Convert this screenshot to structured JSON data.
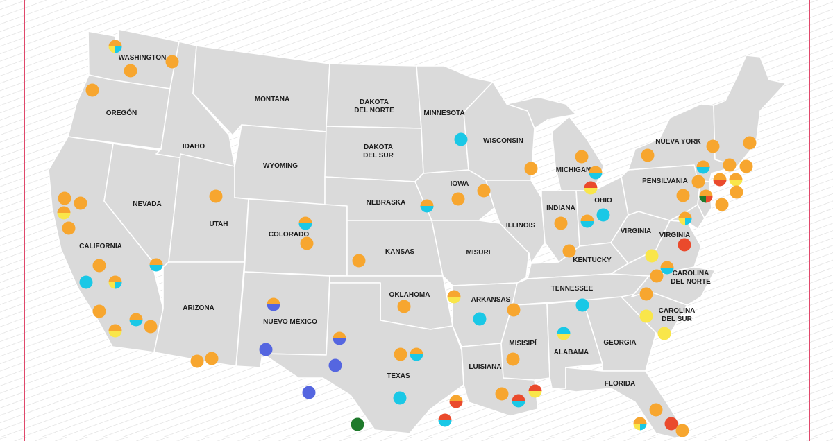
{
  "colors": {
    "orange": "#f7a62f",
    "cyan": "#1ac8e6",
    "yellow": "#f9e64a",
    "red": "#ea4a2c",
    "blue": "#5566e0",
    "green": "#1f7a2c",
    "frame": "#e0486b",
    "land": "#dadada"
  },
  "labels": {
    "washington": "WASHINGTON",
    "oregon": "OREGÓN",
    "california": "CALIFORNIA",
    "nevada": "NEVADA",
    "idaho": "IDAHO",
    "montana": "MONTANA",
    "wyoming": "WYOMING",
    "utah": "UTAH",
    "arizona": "ARIZONA",
    "colorado": "COLORADO",
    "nuevo_mexico": "NUEVO MÉXICO",
    "dakota_del_norte_1": "DAKOTA",
    "dakota_del_norte_2": "DEL NORTE",
    "dakota_del_sur_1": "DAKOTA",
    "dakota_del_sur_2": "DEL SUR",
    "nebraska": "NEBRASKA",
    "kansas": "KANSAS",
    "oklahoma": "OKLAHOMA",
    "texas": "TEXAS",
    "minnesota": "MINNESOTA",
    "iowa": "IOWA",
    "misuri": "MISURI",
    "arkansas": "ARKANSAS",
    "luisiana": "LUISIANA",
    "wisconsin": "WISCONSIN",
    "illinois": "ILLINOIS",
    "michigan": "MICHIGAN",
    "indiana": "INDIANA",
    "ohio": "OHIO",
    "kentucky": "KENTUCKY",
    "tennessee": "TENNESSEE",
    "misisipi": "MISISIPÍ",
    "alabama": "ALABAMA",
    "georgia": "GEORGIA",
    "florida": "FLORIDA",
    "carolina_del_sur_1": "CAROLINA",
    "carolina_del_sur_2": "DEL SUR",
    "carolina_del_norte_1": "CAROLINA",
    "carolina_del_norte_2": "DEL NORTE",
    "virginia": "VIRGINIA",
    "virginia_occidental": "VIRGINIA",
    "pensilvania": "PENSILVANIA",
    "nueva_york": "NUEVA YORK"
  },
  "markers": [
    {
      "id": "wa-1",
      "colors": [
        "orange",
        "cyan",
        "yellow"
      ]
    },
    {
      "id": "wa-2",
      "colors": [
        "orange"
      ]
    },
    {
      "id": "wa-3",
      "colors": [
        "orange"
      ]
    },
    {
      "id": "or-1",
      "colors": [
        "orange"
      ]
    },
    {
      "id": "ca-1",
      "colors": [
        "orange"
      ]
    },
    {
      "id": "ca-2",
      "colors": [
        "orange",
        "yellow"
      ]
    },
    {
      "id": "ca-3",
      "colors": [
        "orange"
      ]
    },
    {
      "id": "ca-4",
      "colors": [
        "orange"
      ]
    },
    {
      "id": "ca-5",
      "colors": [
        "orange"
      ]
    },
    {
      "id": "ca-6",
      "colors": [
        "cyan"
      ]
    },
    {
      "id": "ca-7",
      "colors": [
        "orange",
        "cyan",
        "yellow"
      ]
    },
    {
      "id": "ca-8",
      "colors": [
        "orange"
      ]
    },
    {
      "id": "ca-9",
      "colors": [
        "orange",
        "cyan"
      ]
    },
    {
      "id": "ca-10",
      "colors": [
        "orange"
      ]
    },
    {
      "id": "ca-11",
      "colors": [
        "orange",
        "yellow"
      ]
    },
    {
      "id": "ca-12",
      "colors": [
        "orange"
      ]
    },
    {
      "id": "ca-13",
      "colors": [
        "orange"
      ]
    },
    {
      "id": "nv-1",
      "colors": [
        "orange",
        "cyan"
      ]
    },
    {
      "id": "ut-1",
      "colors": [
        "orange"
      ]
    },
    {
      "id": "co-1",
      "colors": [
        "orange",
        "cyan"
      ]
    },
    {
      "id": "co-2",
      "colors": [
        "orange"
      ]
    },
    {
      "id": "nm-1",
      "colors": [
        "orange",
        "blue"
      ]
    },
    {
      "id": "nm-2",
      "colors": [
        "blue"
      ]
    },
    {
      "id": "tx-1",
      "colors": [
        "orange",
        "blue"
      ]
    },
    {
      "id": "tx-2",
      "colors": [
        "blue"
      ]
    },
    {
      "id": "tx-3",
      "colors": [
        "blue"
      ]
    },
    {
      "id": "tx-4",
      "colors": [
        "green"
      ]
    },
    {
      "id": "tx-5",
      "colors": [
        "orange"
      ]
    },
    {
      "id": "tx-6",
      "colors": [
        "orange",
        "cyan"
      ]
    },
    {
      "id": "tx-7",
      "colors": [
        "cyan"
      ]
    },
    {
      "id": "tx-8",
      "colors": [
        "orange",
        "red"
      ]
    },
    {
      "id": "tx-9",
      "colors": [
        "red",
        "cyan"
      ]
    },
    {
      "id": "ks-1",
      "colors": [
        "orange"
      ]
    },
    {
      "id": "ok-1",
      "colors": [
        "orange"
      ]
    },
    {
      "id": "ok-2",
      "colors": [
        "orange",
        "yellow"
      ]
    },
    {
      "id": "ne-1",
      "colors": [
        "orange",
        "cyan"
      ]
    },
    {
      "id": "mn-1",
      "colors": [
        "cyan"
      ]
    },
    {
      "id": "ia-1",
      "colors": [
        "orange"
      ]
    },
    {
      "id": "ia-2",
      "colors": [
        "orange"
      ]
    },
    {
      "id": "wi-1",
      "colors": [
        "orange"
      ]
    },
    {
      "id": "ar-1",
      "colors": [
        "cyan"
      ]
    },
    {
      "id": "ar-2",
      "colors": [
        "orange"
      ]
    },
    {
      "id": "ms-1",
      "colors": [
        "orange"
      ]
    },
    {
      "id": "la-1",
      "colors": [
        "orange"
      ]
    },
    {
      "id": "la-2",
      "colors": [
        "red",
        "cyan"
      ]
    },
    {
      "id": "al-1",
      "colors": [
        "red",
        "yellow"
      ]
    },
    {
      "id": "al-2",
      "colors": [
        "cyan",
        "yellow"
      ]
    },
    {
      "id": "tn-1",
      "colors": [
        "cyan"
      ]
    },
    {
      "id": "mi-1",
      "colors": [
        "orange"
      ]
    },
    {
      "id": "mi-2",
      "colors": [
        "orange",
        "cyan"
      ]
    },
    {
      "id": "mi-3",
      "colors": [
        "red",
        "yellow"
      ]
    },
    {
      "id": "in-1",
      "colors": [
        "orange"
      ]
    },
    {
      "id": "oh-1",
      "colors": [
        "orange",
        "cyan"
      ]
    },
    {
      "id": "oh-2",
      "colors": [
        "cyan"
      ]
    },
    {
      "id": "ky-1",
      "colors": [
        "orange"
      ]
    },
    {
      "id": "ny-1",
      "colors": [
        "orange"
      ]
    },
    {
      "id": "ny-2",
      "colors": [
        "orange"
      ]
    },
    {
      "id": "ne-us-1",
      "colors": [
        "orange"
      ]
    },
    {
      "id": "ne-us-2",
      "colors": [
        "orange"
      ]
    },
    {
      "id": "ne-us-3",
      "colors": [
        "orange"
      ]
    },
    {
      "id": "ne-us-4",
      "colors": [
        "orange",
        "cyan"
      ]
    },
    {
      "id": "ne-us-5",
      "colors": [
        "orange"
      ]
    },
    {
      "id": "ne-us-6",
      "colors": [
        "orange",
        "red"
      ]
    },
    {
      "id": "ne-us-7",
      "colors": [
        "orange",
        "yellow"
      ]
    },
    {
      "id": "ne-us-8",
      "colors": [
        "orange"
      ]
    },
    {
      "id": "pa-1",
      "colors": [
        "orange",
        "red",
        "green"
      ]
    },
    {
      "id": "pa-2",
      "colors": [
        "orange"
      ]
    },
    {
      "id": "pa-3",
      "colors": [
        "orange"
      ]
    },
    {
      "id": "md-1",
      "colors": [
        "orange",
        "cyan",
        "yellow"
      ]
    },
    {
      "id": "va-1",
      "colors": [
        "red"
      ]
    },
    {
      "id": "va-2",
      "colors": [
        "yellow"
      ]
    },
    {
      "id": "nc-1",
      "colors": [
        "orange",
        "cyan"
      ]
    },
    {
      "id": "nc-2",
      "colors": [
        "orange"
      ]
    },
    {
      "id": "nc-3",
      "colors": [
        "orange"
      ]
    },
    {
      "id": "sc-1",
      "colors": [
        "yellow"
      ]
    },
    {
      "id": "sc-2",
      "colors": [
        "yellow"
      ]
    },
    {
      "id": "fl-1",
      "colors": [
        "orange"
      ]
    },
    {
      "id": "fl-2",
      "colors": [
        "orange",
        "cyan",
        "yellow"
      ]
    },
    {
      "id": "fl-3",
      "colors": [
        "red"
      ]
    },
    {
      "id": "fl-4",
      "colors": [
        "orange"
      ]
    }
  ]
}
